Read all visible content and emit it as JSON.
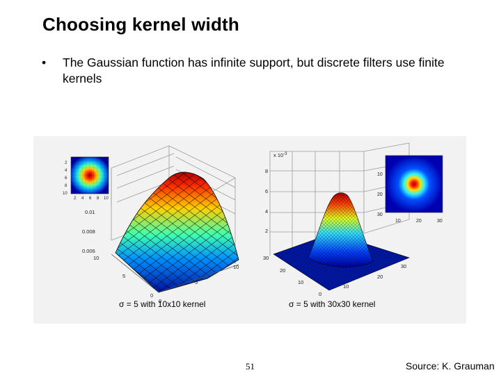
{
  "slide": {
    "title": "Choosing kernel width",
    "bullet_symbol": "•",
    "bullet": "The Gaussian function has infinite support, but discrete filters use finite kernels",
    "page_number": "51",
    "source": "Source: K. Grauman"
  },
  "figure": {
    "left_plot": {
      "caption": "σ = 5 with 10x10 kernel",
      "z_ticks": [
        "0.01",
        "0.008",
        "0.006"
      ],
      "x_ticks": [
        "10",
        "5",
        "0"
      ],
      "y_ticks": [
        "0",
        "5",
        "10"
      ],
      "inset_y_ticks": [
        "2",
        "4",
        "6",
        "8",
        "10"
      ],
      "inset_x_ticks": [
        "2",
        "4",
        "6",
        "8",
        "10"
      ]
    },
    "right_plot": {
      "caption": "σ = 5 with 30x30 kernel",
      "exponent_label": "x 10",
      "exponent_power": "-3",
      "z_ticks": [
        "8",
        "6",
        "4",
        "2"
      ],
      "x_ticks": [
        "30",
        "20",
        "10",
        "0"
      ],
      "y_ticks": [
        "10",
        "20",
        "30"
      ],
      "inset_y_ticks": [
        "10",
        "20",
        "30"
      ],
      "inset_x_ticks": [
        "10",
        "20",
        "30"
      ]
    }
  }
}
